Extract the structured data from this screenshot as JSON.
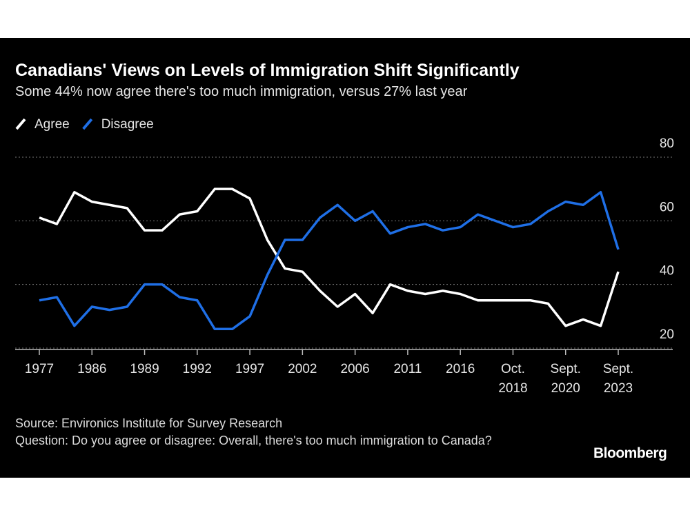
{
  "chart_data": {
    "type": "line",
    "title": "Canadians' Views on Levels of Immigration Shift Significantly",
    "subtitle": "Some 44% now agree there's too much immigration, versus 27% last year",
    "categories": [
      "1977",
      null,
      null,
      "1986",
      null,
      null,
      "1989",
      null,
      null,
      "1992",
      null,
      null,
      "1997",
      null,
      null,
      "2002",
      null,
      null,
      "2006",
      null,
      null,
      "2011",
      null,
      null,
      "2016",
      null,
      null,
      "Oct. 2018",
      null,
      null,
      "Sept. 2020",
      null,
      null,
      "Sept. 2023"
    ],
    "series": [
      {
        "name": "Agree",
        "color": "#ffffff",
        "values": [
          61,
          59,
          69,
          66,
          65,
          64,
          57,
          57,
          62,
          63,
          70,
          70,
          67,
          54,
          45,
          44,
          38,
          33,
          37,
          31,
          40,
          38,
          37,
          38,
          37,
          35,
          35,
          35,
          35,
          34,
          27,
          29,
          27,
          44
        ]
      },
      {
        "name": "Disagree",
        "color": "#1f6fe6",
        "values": [
          35,
          36,
          27,
          33,
          32,
          33,
          40,
          40,
          36,
          35,
          26,
          26,
          30,
          43,
          54,
          54,
          61,
          65,
          60,
          63,
          56,
          58,
          59,
          57,
          58,
          62,
          60,
          58,
          59,
          63,
          66,
          65,
          69,
          51
        ]
      }
    ],
    "ylim": [
      20,
      80
    ],
    "yticks": [
      20,
      40,
      60,
      80
    ],
    "grid": true,
    "y_axis_side": "right",
    "legend": "top-left",
    "source": "Source: Environics Institute for Survey Research",
    "note": "Question: Do you agree or disagree: Overall, there's too much immigration to Canada?",
    "branding": "Bloomberg"
  }
}
